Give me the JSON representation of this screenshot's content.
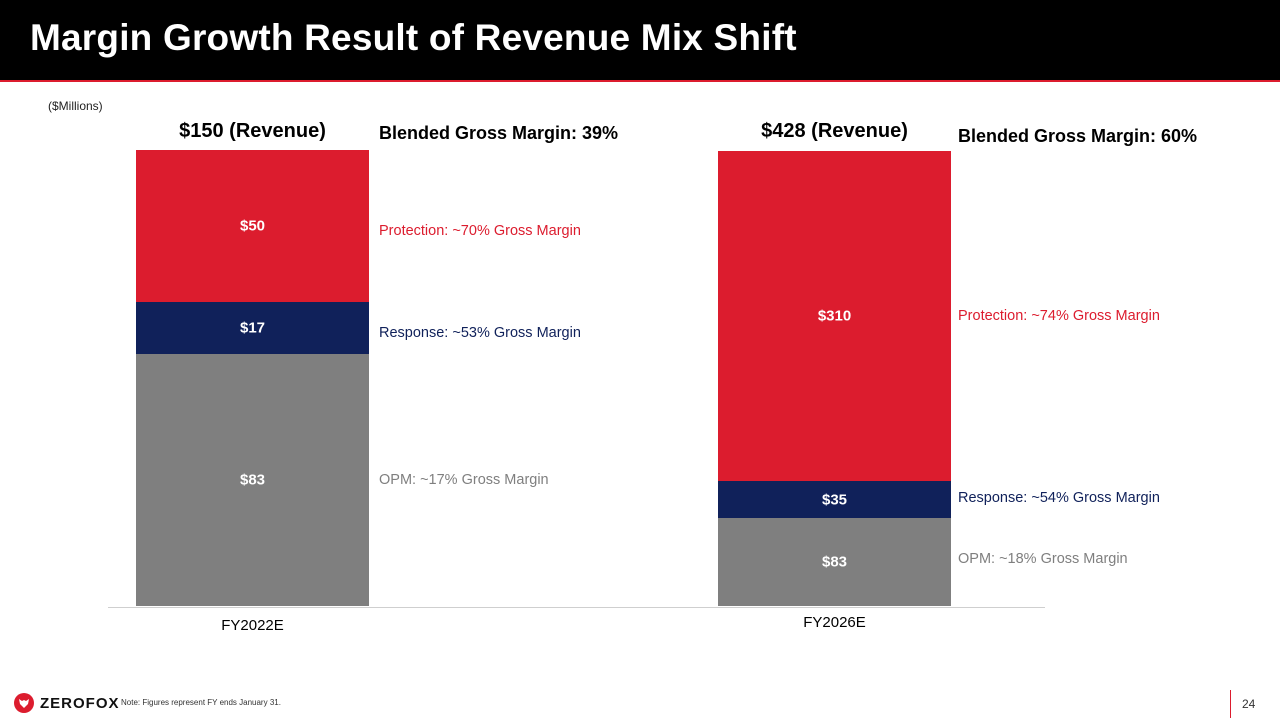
{
  "slide": {
    "title": "Margin Growth Result of Revenue Mix Shift",
    "units": "($Millions)",
    "footnote": "Note: Figures represent FY ends January 31.",
    "page_number": "24",
    "logo_text": "ZEROFOX"
  },
  "colors": {
    "protection": "#dc1c2e",
    "response": "#10215a",
    "opm": "#7f7f7f",
    "title_bar": "#000000"
  },
  "chart_data": {
    "type": "bar",
    "stacked": true,
    "categories": [
      "FY2022E",
      "FY2026E"
    ],
    "series": [
      {
        "key": "opm",
        "values": [
          83,
          83
        ],
        "value_labels": [
          "$83",
          "$83"
        ]
      },
      {
        "key": "response",
        "values": [
          17,
          35
        ],
        "value_labels": [
          "$17",
          "$35"
        ]
      },
      {
        "key": "protection",
        "values": [
          50,
          310
        ],
        "value_labels": [
          "$50",
          "$310"
        ]
      }
    ],
    "totals": [
      "$150 (Revenue)",
      "$428 (Revenue)"
    ],
    "blended_margins": [
      "Blended Gross Margin: 39%",
      "Blended Gross Margin: 60%"
    ],
    "annotations": {
      "FY2022E": {
        "protection": "Protection: ~70% Gross Margin",
        "response": "Response: ~53% Gross Margin",
        "opm": "OPM: ~17% Gross Margin"
      },
      "FY2026E": {
        "protection": "Protection: ~74% Gross Margin",
        "response": "Response: ~54% Gross Margin",
        "opm": "OPM: ~18% Gross Margin"
      }
    },
    "legend": "none",
    "grid": false
  }
}
